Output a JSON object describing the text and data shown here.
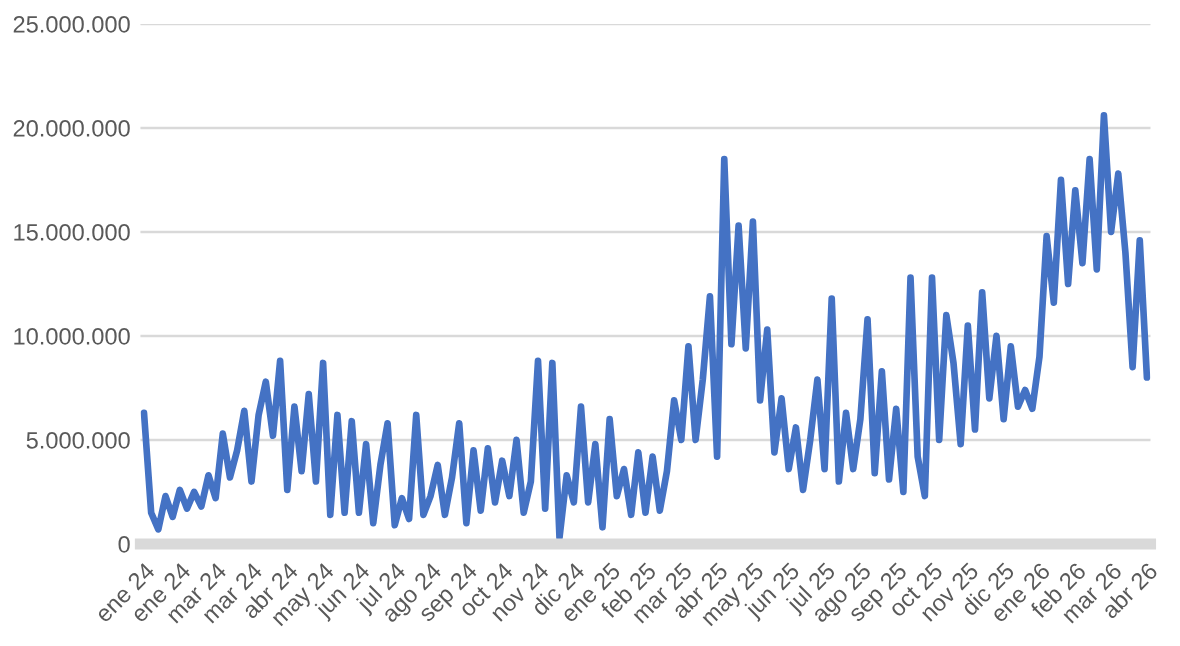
{
  "chart_data": {
    "type": "line",
    "categories": [
      "ene 24",
      null,
      null,
      null,
      null,
      "ene 24",
      null,
      null,
      null,
      null,
      "mar 24",
      null,
      null,
      null,
      null,
      "mar 24",
      null,
      null,
      null,
      null,
      "abr 24",
      null,
      null,
      null,
      null,
      "may 24",
      null,
      null,
      null,
      null,
      "jun 24",
      null,
      null,
      null,
      null,
      "jul 24",
      null,
      null,
      null,
      null,
      "ago 24",
      null,
      null,
      null,
      null,
      "sep 24",
      null,
      null,
      null,
      null,
      "oct 24",
      null,
      null,
      null,
      null,
      "nov 24",
      null,
      null,
      null,
      null,
      "dic 24",
      null,
      null,
      null,
      null,
      "ene 25",
      null,
      null,
      null,
      null,
      "feb 25",
      null,
      null,
      null,
      null,
      "mar 25",
      null,
      null,
      null,
      null,
      "abr 25",
      null,
      null,
      null,
      null,
      "may 25",
      null,
      null,
      null,
      null,
      "jun 25",
      null,
      null,
      null,
      null,
      "jul 25",
      null,
      null,
      null,
      null,
      "ago 25",
      null,
      null,
      null,
      null,
      "sep 25",
      null,
      null,
      null,
      null,
      "oct 25",
      null,
      null,
      null,
      null,
      "nov 25",
      null,
      null,
      null,
      null,
      "dic 25",
      null,
      null,
      null,
      null,
      "ene 26",
      null,
      null,
      null,
      null,
      "feb 26",
      null,
      null,
      null,
      null,
      "mar 26",
      null,
      null,
      null,
      null,
      "abr 26"
    ],
    "series": [
      {
        "color": "#4472c4",
        "values": [
          6300000,
          1500000,
          700000,
          2300000,
          1300000,
          2600000,
          1700000,
          2500000,
          1800000,
          3300000,
          2200000,
          5300000,
          3200000,
          4500000,
          6400000,
          3000000,
          6200000,
          7800000,
          5200000,
          8800000,
          2600000,
          6600000,
          3500000,
          7200000,
          3000000,
          8700000,
          1400000,
          6200000,
          1500000,
          5900000,
          1500000,
          4800000,
          1000000,
          3800000,
          5800000,
          900000,
          2200000,
          1200000,
          6200000,
          1400000,
          2300000,
          3800000,
          1400000,
          3200000,
          5800000,
          1000000,
          4500000,
          1600000,
          4600000,
          2000000,
          4000000,
          2300000,
          5000000,
          1500000,
          3000000,
          8800000,
          1700000,
          8700000,
          300000,
          3300000,
          2000000,
          6600000,
          2000000,
          4800000,
          800000,
          6000000,
          2300000,
          3600000,
          1400000,
          4400000,
          1500000,
          4200000,
          1600000,
          3500000,
          6900000,
          5000000,
          9500000,
          5000000,
          7900000,
          11900000,
          4200000,
          18500000,
          9600000,
          15300000,
          9400000,
          15500000,
          6900000,
          10300000,
          4400000,
          7000000,
          3600000,
          5600000,
          2600000,
          5000000,
          7900000,
          3600000,
          11800000,
          3000000,
          6300000,
          3600000,
          6000000,
          10800000,
          3400000,
          8300000,
          3100000,
          6500000,
          2500000,
          12800000,
          4200000,
          2300000,
          12800000,
          5000000,
          11000000,
          8700000,
          4800000,
          10500000,
          5500000,
          12100000,
          7000000,
          10000000,
          6000000,
          9500000,
          6600000,
          7400000,
          6500000,
          9000000,
          14800000,
          11600000,
          17500000,
          12500000,
          17000000,
          13500000,
          18500000,
          13200000,
          20600000,
          15000000,
          17800000,
          14000000,
          8500000,
          14600000,
          8000000
        ]
      }
    ],
    "ylim": [
      0,
      25000000
    ],
    "yticks": [
      {
        "value": 0,
        "label": "0"
      },
      {
        "value": 5000000,
        "label": "5.000.000"
      },
      {
        "value": 10000000,
        "label": "10.000.000"
      },
      {
        "value": 15000000,
        "label": "15.000.000"
      },
      {
        "value": 20000000,
        "label": "20.000.000"
      },
      {
        "value": 25000000,
        "label": "25.000.000"
      }
    ],
    "grid": "y"
  }
}
